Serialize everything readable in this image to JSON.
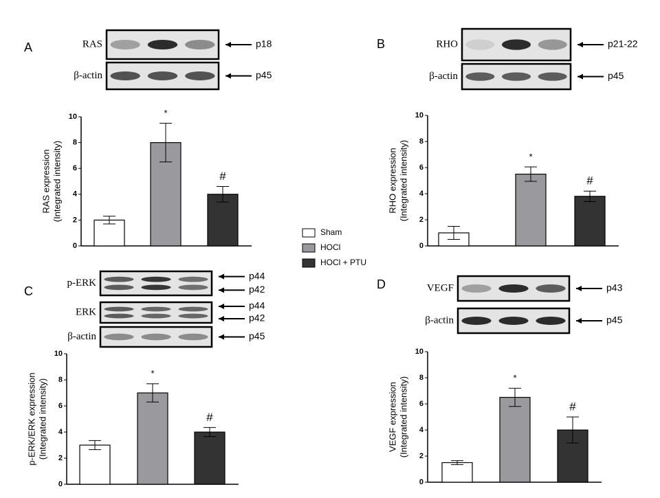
{
  "legend": [
    {
      "name": "Sham",
      "color": "#ffffff"
    },
    {
      "name": "HOCl",
      "color": "#9a9a9e"
    },
    {
      "name": "HOCl + PTU",
      "color": "#333333"
    }
  ],
  "chart_data": [
    {
      "type": "bar",
      "panel": "A",
      "ylabel": [
        "RAS expression",
        "(Integrated intensity)"
      ],
      "blots": [
        {
          "label": "RAS",
          "markers": [
            "p18"
          ]
        },
        {
          "label": "β-actin",
          "markers": [
            "p45"
          ]
        }
      ],
      "categories": [
        null,
        null,
        null
      ],
      "values": [
        2,
        8,
        4
      ],
      "errors": [
        0.3,
        1.5,
        0.6
      ],
      "markers": [
        null,
        "*",
        "#"
      ],
      "ylim": [
        0,
        10
      ],
      "yticks": [
        0,
        2,
        4,
        6,
        8,
        10
      ]
    },
    {
      "type": "bar",
      "panel": "B",
      "ylabel": [
        "RHO expression",
        "(Integrated intensity)"
      ],
      "blots": [
        {
          "label": "RHO",
          "markers": [
            "p21-22"
          ]
        },
        {
          "label": "β-actin",
          "markers": [
            "p45"
          ]
        }
      ],
      "categories": [
        null,
        null,
        null
      ],
      "values": [
        1,
        5.5,
        3.8
      ],
      "errors": [
        0.5,
        0.55,
        0.4
      ],
      "markers": [
        null,
        "*",
        "#"
      ],
      "ylim": [
        0,
        10
      ],
      "yticks": [
        0,
        2,
        4,
        6,
        8,
        10
      ]
    },
    {
      "type": "bar",
      "panel": "C",
      "ylabel": [
        "p-ERK/ERK expression",
        "(Integrated intensity)"
      ],
      "blots": [
        {
          "label": "p-ERK",
          "markers": [
            "p44",
            "p42"
          ]
        },
        {
          "label": "ERK",
          "markers": [
            "p44",
            "p42"
          ]
        },
        {
          "label": "β-actin",
          "markers": [
            "p45"
          ]
        }
      ],
      "categories": [
        null,
        null,
        null
      ],
      "values": [
        3,
        7,
        4
      ],
      "errors": [
        0.35,
        0.7,
        0.35
      ],
      "markers": [
        null,
        "*",
        "#"
      ],
      "ylim": [
        0,
        10
      ],
      "yticks": [
        0,
        2,
        4,
        6,
        8,
        10
      ]
    },
    {
      "type": "bar",
      "panel": "D",
      "ylabel": [
        "VEGF expression",
        "(Integrated intensity)"
      ],
      "blots": [
        {
          "label": "VEGF",
          "markers": [
            "p43"
          ]
        },
        {
          "label": "β-actin",
          "markers": [
            "p45"
          ]
        }
      ],
      "categories": [
        null,
        null,
        null
      ],
      "values": [
        1.5,
        6.5,
        4
      ],
      "errors": [
        0.15,
        0.7,
        1.0
      ],
      "markers": [
        null,
        "*",
        "#"
      ],
      "ylim": [
        0,
        10
      ],
      "yticks": [
        0,
        2,
        4,
        6,
        8,
        10
      ]
    }
  ]
}
